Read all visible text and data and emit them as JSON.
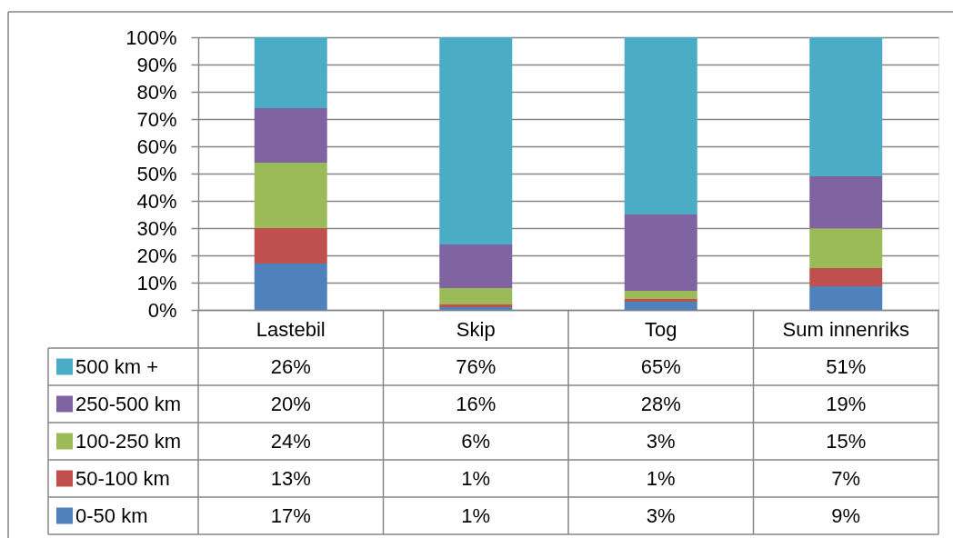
{
  "chart_data": {
    "type": "bar",
    "stacked": true,
    "categories": [
      "Lastebil",
      "Skip",
      "Tog",
      "Sum innenriks"
    ],
    "series": [
      {
        "name": "0-50 km",
        "color": "#4f81bd",
        "values": [
          17,
          1,
          3,
          8.7
        ],
        "value_labels": [
          "17%",
          "1%",
          "3%",
          "9%"
        ]
      },
      {
        "name": "50-100 km",
        "color": "#c0504d",
        "values": [
          13,
          1,
          1,
          6.6
        ],
        "value_labels": [
          "13%",
          "1%",
          "1%",
          "7%"
        ]
      },
      {
        "name": "100-250 km",
        "color": "#9bbb59",
        "values": [
          24,
          6,
          3,
          14.6
        ],
        "value_labels": [
          "24%",
          "6%",
          "3%",
          "15%"
        ]
      },
      {
        "name": "250-500 km",
        "color": "#8064a2",
        "values": [
          20,
          16,
          28,
          19.1
        ],
        "value_labels": [
          "20%",
          "16%",
          "28%",
          "19%"
        ]
      },
      {
        "name": "500 km +",
        "color": "#4bacc6",
        "values": [
          26,
          76,
          65,
          51
        ],
        "value_labels": [
          "26%",
          "76%",
          "65%",
          "51%"
        ]
      }
    ],
    "ylim": [
      0,
      100
    ],
    "yticks": [
      {
        "value": 0,
        "label": "0%"
      },
      {
        "value": 10,
        "label": "10%"
      },
      {
        "value": 20,
        "label": "20%"
      },
      {
        "value": 30,
        "label": "30%"
      },
      {
        "value": 40,
        "label": "40%"
      },
      {
        "value": 50,
        "label": "50%"
      },
      {
        "value": 60,
        "label": "60%"
      },
      {
        "value": 70,
        "label": "70%"
      },
      {
        "value": 80,
        "label": "80%"
      },
      {
        "value": 90,
        "label": "90%"
      },
      {
        "value": 100,
        "label": "100%"
      }
    ],
    "grid": "y",
    "legend": "bottom left"
  }
}
